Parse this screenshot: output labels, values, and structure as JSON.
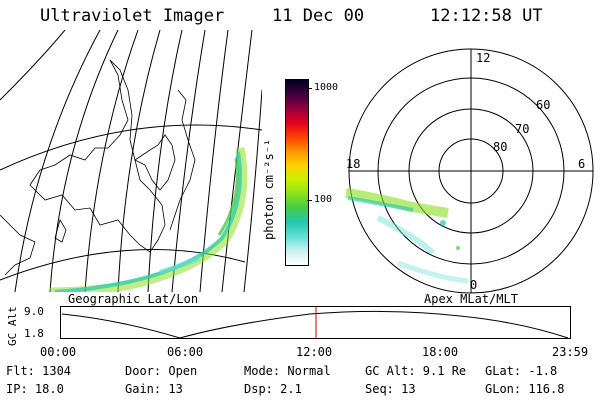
{
  "header": {
    "title": "Ultraviolet Imager",
    "date": "11 Dec 00",
    "time": "12:12:58 UT"
  },
  "geo_panel": {
    "label": "Geographic Lat/Lon"
  },
  "colorbar": {
    "unit_label": "photon cm⁻²s⁻¹",
    "tick_1000": "1000",
    "tick_100": "100",
    "colors": [
      "#ffffff",
      "#c8f0f0",
      "#66e0d8",
      "#22c8b0",
      "#44cc44",
      "#88e020",
      "#c8f000",
      "#ffd000",
      "#ff9000",
      "#ff4000",
      "#e00020",
      "#900040",
      "#400040",
      "#000020"
    ]
  },
  "polar_panel": {
    "label": "Apex MLat/MLT",
    "mlt_top": "12",
    "mlt_left": "18",
    "mlt_right": "6",
    "mlt_bottom": "0",
    "lat_60": "60",
    "lat_70": "70",
    "lat_80": "80"
  },
  "altitude_plot": {
    "ylabel": "GC Alt",
    "ytick_top": "9.0",
    "ytick_bottom": "1.8",
    "xticks": [
      "00:00",
      "06:00",
      "12:00",
      "18:00",
      "23:59"
    ],
    "marker_color": "#d00000"
  },
  "status": {
    "flt": "Flt: 1304",
    "door": "Door: Open",
    "mode": "Mode: Normal",
    "gc_alt": "GC Alt: 9.1 Re",
    "glat": "GLat:  -1.8",
    "ip": "IP: 18.0",
    "gain": "Gain: 13",
    "dsp": "Dsp:    2.1",
    "seq": "Seq: 13",
    "glon": "GLon: 116.8"
  }
}
